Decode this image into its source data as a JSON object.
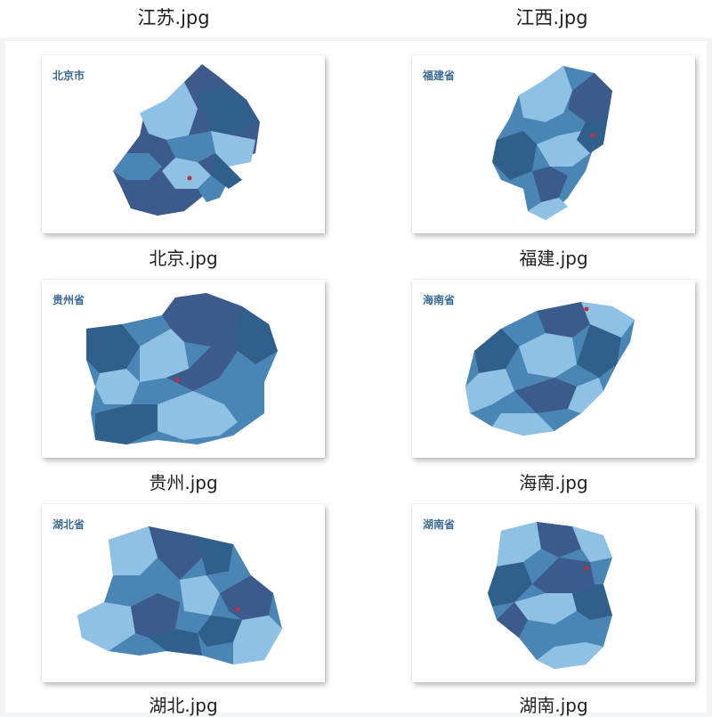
{
  "top_row": {
    "left_filename": "江苏.jpg",
    "right_filename": "江西.jpg"
  },
  "thumbnails": [
    {
      "map_title": "北京市",
      "filename": "北京.jpg"
    },
    {
      "map_title": "福建省",
      "filename": "福建.jpg"
    },
    {
      "map_title": "贵州省",
      "filename": "贵州.jpg"
    },
    {
      "map_title": "海南省",
      "filename": "海南.jpg"
    },
    {
      "map_title": "湖北省",
      "filename": "湖北.jpg"
    },
    {
      "map_title": "湖南省",
      "filename": "湖南.jpg"
    }
  ],
  "colors": {
    "dark": "#2f5f8a",
    "medium": "#4a86b5",
    "light": "#8ec1e4",
    "navy": "#3d5a8c",
    "capital": "#c0303a",
    "title": "#3d6b95"
  }
}
